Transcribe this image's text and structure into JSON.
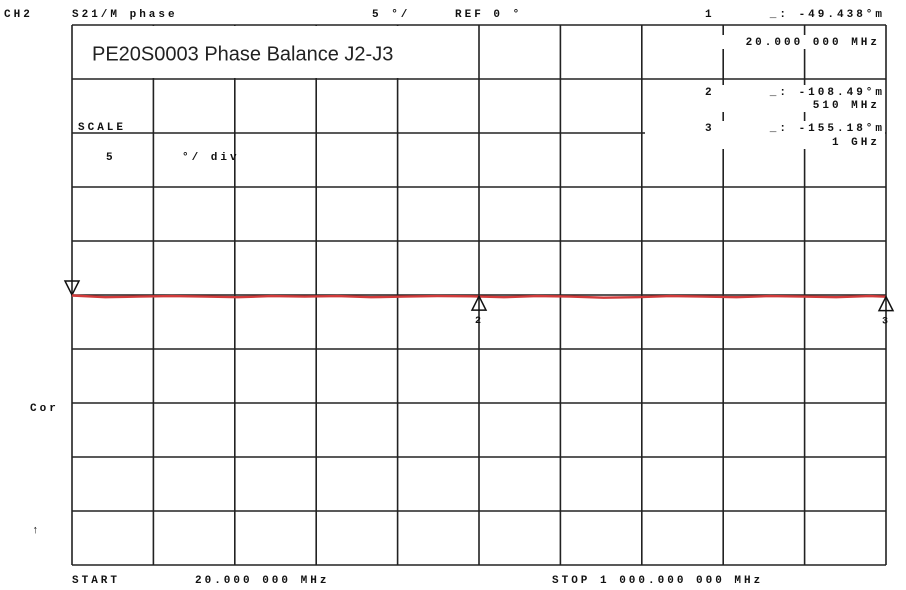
{
  "chart_data": {
    "type": "line",
    "title": "PE20S0003 Phase Balance J2-J3",
    "channel": "CH2",
    "measurement": "S21/M phase",
    "scale_header": "5 °/",
    "ref_label": "REF 0 °",
    "scale_title": "SCALE",
    "scale_value": "5",
    "scale_unit": "°/ div",
    "correction": "Cor",
    "trigger": "↑",
    "start_label": "START",
    "start_value": "20.000 000 MHz",
    "stop_label": "STOP 1 000.000 000 MHz",
    "xlim": [
      20,
      1000
    ],
    "ylim": [
      -25,
      25
    ],
    "x": [
      20,
      60,
      100,
      140,
      180,
      220,
      260,
      300,
      340,
      380,
      420,
      460,
      500,
      540,
      580,
      620,
      660,
      700,
      740,
      780,
      820,
      860,
      900,
      940,
      980,
      1000
    ],
    "series": [
      {
        "name": "S21 phase",
        "color": "#d23b3b",
        "values": [
          -0.05,
          -0.2,
          -0.15,
          -0.1,
          -0.15,
          -0.2,
          -0.1,
          -0.15,
          -0.1,
          -0.2,
          -0.15,
          -0.1,
          -0.12,
          -0.2,
          -0.1,
          -0.15,
          -0.25,
          -0.2,
          -0.1,
          -0.15,
          -0.2,
          -0.1,
          -0.15,
          -0.2,
          -0.1,
          -0.16
        ]
      }
    ],
    "markers": {
      "names": [
        "1",
        "2",
        "3"
      ],
      "x": [
        20,
        510,
        1000
      ],
      "values": [
        -0.049438,
        -0.10849,
        -0.15518
      ],
      "value_labels": [
        "_: -49.438°m",
        "_: -108.49°m",
        "_: -155.18°m"
      ],
      "x_labels": [
        "20.000 000 MHz",
        "510 MHz",
        "1 GHz"
      ]
    }
  }
}
